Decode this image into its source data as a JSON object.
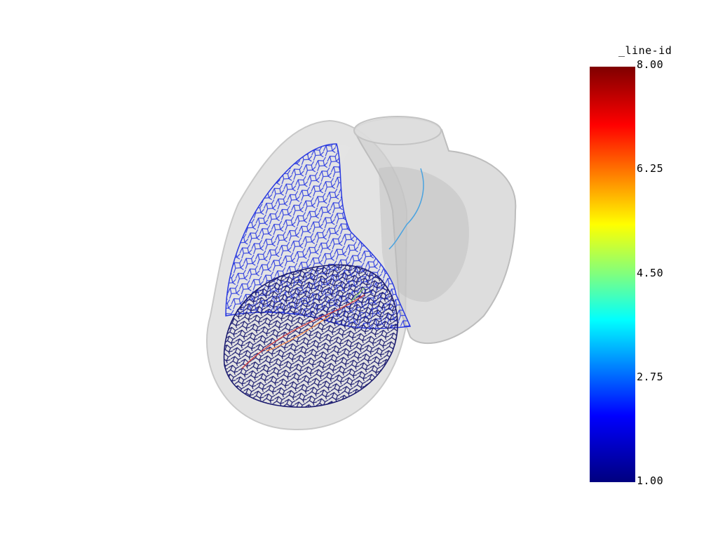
{
  "scalar_bar": {
    "title": "_line-id",
    "ticks": [
      "8.00",
      "6.25",
      "4.50",
      "2.75",
      "1.00"
    ],
    "range": [
      1.0,
      8.0
    ],
    "colormap": "jet",
    "colors": [
      "#00007f",
      "#0000ff",
      "#00ffff",
      "#7fff7f",
      "#ffff00",
      "#ff7f00",
      "#ff0000",
      "#7f0000"
    ]
  },
  "scene": {
    "description_colors": {
      "background": "#ffffff",
      "shell": "#d8d8d8",
      "mesh_blue": "#2233dd",
      "mesh_navy": "#1a1a6a"
    }
  }
}
